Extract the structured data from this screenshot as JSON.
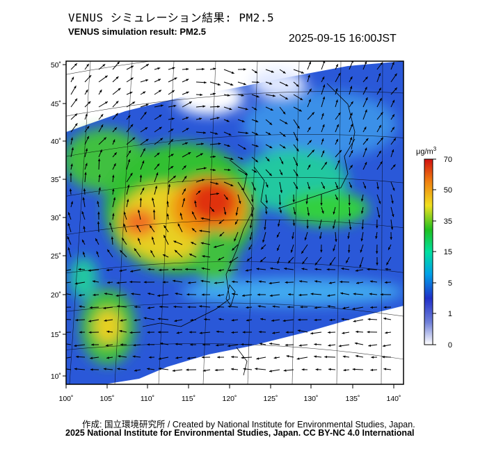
{
  "header": {
    "title_jp": "VENUS シミュレーション結果: PM2.5",
    "title_en": "VENUS simulation result: PM2.5",
    "timestamp": "2025-09-15 16:00JST"
  },
  "map": {
    "lat_labels": [
      "50˚",
      "45˚",
      "40˚",
      "35˚",
      "30˚",
      "25˚",
      "20˚",
      "15˚",
      "10˚"
    ],
    "lon_labels": [
      "100˚",
      "105˚",
      "110˚",
      "115˚",
      "120˚",
      "125˚",
      "130˚",
      "135˚",
      "140˚"
    ],
    "variable": "PM2.5",
    "has_wind_vectors": true
  },
  "colorbar": {
    "unit_base": "μg/m",
    "unit_sup": "3",
    "ticks": [
      "70",
      "50",
      "35",
      "15",
      "5",
      "1",
      "0"
    ]
  },
  "footer": {
    "credit_line": "作成: 国立環境研究所 / Created by National Institute for Environmental Studies, Japan.",
    "license_line": "2025 National Institute for Environmental Studies, Japan. CC BY-NC 4.0 International"
  }
}
